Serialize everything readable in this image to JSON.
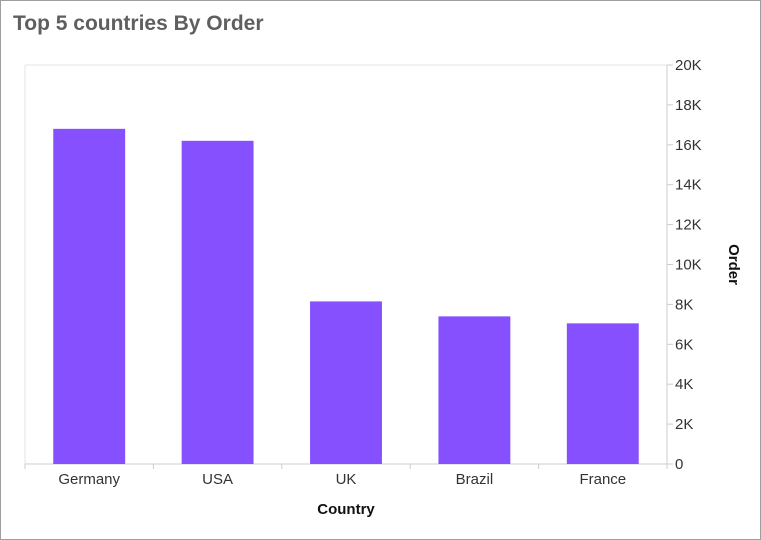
{
  "card": {
    "title": "Top 5 countries By Order"
  },
  "chart_data": {
    "type": "bar",
    "title": "Top 5 countries By Order",
    "xlabel": "Country",
    "ylabel": "Order",
    "categories": [
      "Germany",
      "USA",
      "UK",
      "Brazil",
      "France"
    ],
    "series": [
      {
        "values": [
          16800,
          16200,
          8150,
          7400,
          7050
        ]
      }
    ],
    "ylim": [
      0,
      20000
    ],
    "y_ticks": [
      0,
      2000,
      4000,
      6000,
      8000,
      10000,
      12000,
      14000,
      16000,
      18000,
      20000
    ],
    "y_tick_labels": [
      "0",
      "2K",
      "4K",
      "6K",
      "8K",
      "10K",
      "12K",
      "14K",
      "16K",
      "18K",
      "20K"
    ],
    "y_axis_side": "right",
    "grid": false,
    "legend": "none",
    "bar_color": "#8650ff"
  }
}
